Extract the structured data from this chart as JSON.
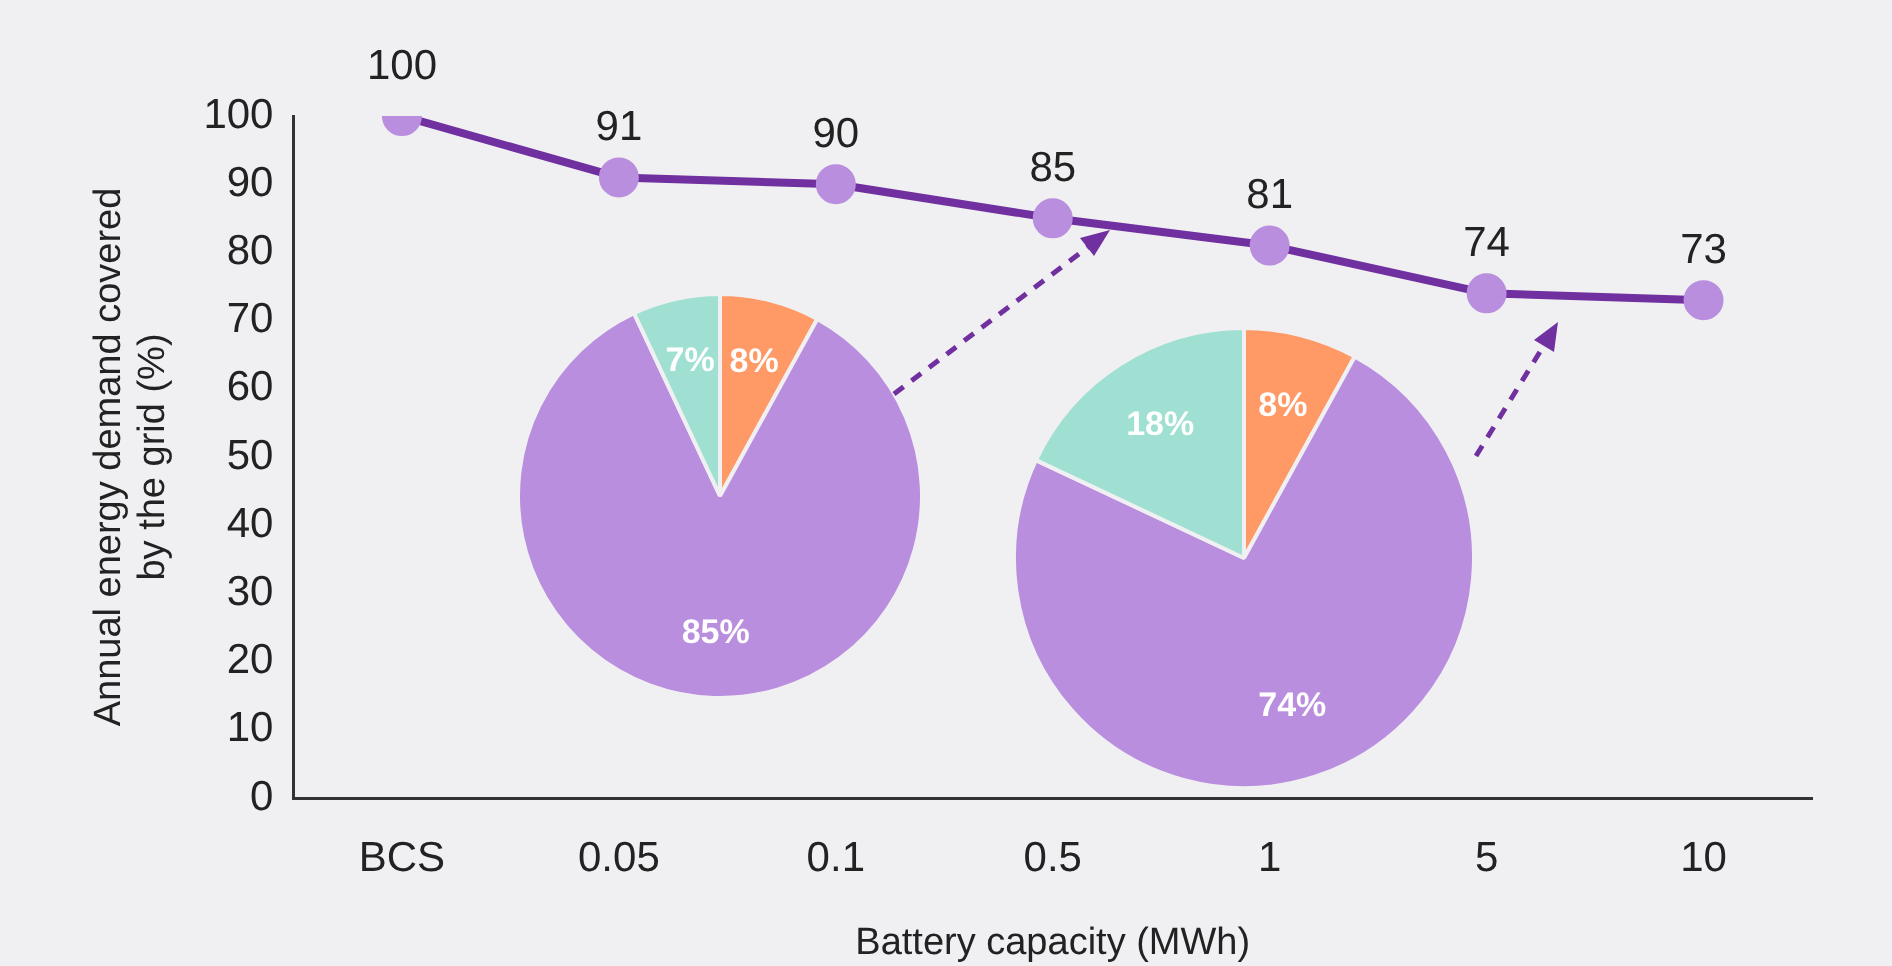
{
  "chart_data": [
    {
      "type": "line",
      "xlabel": "Battery capacity (MWh)",
      "ylabel": "Annual energy demand covered by the grid (%)",
      "categories": [
        "BCS",
        "0.05",
        "0.1",
        "0.5",
        "1",
        "5",
        "10"
      ],
      "series": [
        {
          "color": "#7030a0",
          "values": [
            100,
            91,
            90,
            85,
            81,
            74,
            73
          ]
        }
      ],
      "ylim": [
        0,
        100
      ],
      "yticks": [
        0,
        10,
        20,
        30,
        40,
        50,
        60,
        70,
        80,
        90,
        100
      ],
      "grid": false,
      "legend": false,
      "marker": "circle",
      "data_labels": true
    },
    {
      "type": "pie",
      "categories": [
        null,
        null,
        null
      ],
      "values": [
        8,
        85,
        7
      ],
      "value_labels": [
        "8%",
        "85%",
        "7%"
      ],
      "colors": [
        "#ff9966",
        "#b98ede",
        "#a0e0d2"
      ]
    },
    {
      "type": "pie",
      "categories": [
        null,
        null,
        null
      ],
      "values": [
        8,
        74,
        18
      ],
      "value_labels": [
        "8%",
        "74%",
        "18%"
      ],
      "colors": [
        "#ff9966",
        "#b98ede",
        "#a0e0d2"
      ]
    }
  ]
}
